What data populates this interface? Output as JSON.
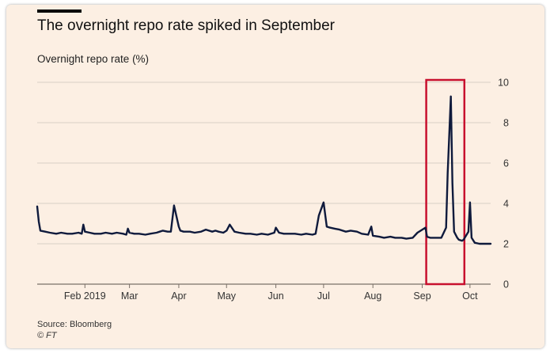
{
  "colors": {
    "background": "#fcefe3",
    "line": "#0f1a3c",
    "grid": "#d9cfc6",
    "highlight": "#c8102e"
  },
  "header": {
    "title": "The overnight repo rate spiked in September",
    "subtitle": "Overnight repo rate (%)"
  },
  "footer": {
    "source": "Source: Bloomberg",
    "copyright": "© FT"
  },
  "chart_data": {
    "type": "line",
    "title": "The overnight repo rate spiked in September",
    "ylabel": "Overnight repo rate (%)",
    "xlabel": "",
    "ylim": [
      0,
      10
    ],
    "yticks": [
      0,
      2,
      4,
      6,
      8,
      10
    ],
    "y_axis_side": "right",
    "grid": true,
    "xlim": [
      "2019-01-02",
      "2019-10-14"
    ],
    "xticks": [
      {
        "date": "2019-02-01",
        "label": "Feb 2019"
      },
      {
        "date": "2019-03-01",
        "label": "Mar"
      },
      {
        "date": "2019-04-01",
        "label": "Apr"
      },
      {
        "date": "2019-05-01",
        "label": "May"
      },
      {
        "date": "2019-06-01",
        "label": "Jun"
      },
      {
        "date": "2019-07-01",
        "label": "Jul"
      },
      {
        "date": "2019-08-01",
        "label": "Aug"
      },
      {
        "date": "2019-09-01",
        "label": "Sep"
      },
      {
        "date": "2019-10-01",
        "label": "Oct"
      }
    ],
    "highlight_range": [
      "2019-09-06",
      "2019-09-25"
    ],
    "series": [
      {
        "values": [
          [
            "2019-01-02",
            3.85
          ],
          [
            "2019-01-03",
            3.1
          ],
          [
            "2019-01-04",
            2.65
          ],
          [
            "2019-01-07",
            2.6
          ],
          [
            "2019-01-10",
            2.55
          ],
          [
            "2019-01-14",
            2.5
          ],
          [
            "2019-01-17",
            2.55
          ],
          [
            "2019-01-21",
            2.5
          ],
          [
            "2019-01-24",
            2.5
          ],
          [
            "2019-01-28",
            2.55
          ],
          [
            "2019-01-30",
            2.5
          ],
          [
            "2019-01-31",
            2.95
          ],
          [
            "2019-02-01",
            2.6
          ],
          [
            "2019-02-04",
            2.55
          ],
          [
            "2019-02-07",
            2.5
          ],
          [
            "2019-02-11",
            2.5
          ],
          [
            "2019-02-14",
            2.55
          ],
          [
            "2019-02-18",
            2.5
          ],
          [
            "2019-02-21",
            2.55
          ],
          [
            "2019-02-25",
            2.5
          ],
          [
            "2019-02-27",
            2.45
          ],
          [
            "2019-02-28",
            2.75
          ],
          [
            "2019-03-01",
            2.55
          ],
          [
            "2019-03-04",
            2.5
          ],
          [
            "2019-03-07",
            2.5
          ],
          [
            "2019-03-11",
            2.45
          ],
          [
            "2019-03-14",
            2.5
          ],
          [
            "2019-03-18",
            2.55
          ],
          [
            "2019-03-20",
            2.6
          ],
          [
            "2019-03-22",
            2.65
          ],
          [
            "2019-03-25",
            2.6
          ],
          [
            "2019-03-27",
            2.6
          ],
          [
            "2019-03-29",
            3.9
          ],
          [
            "2019-04-01",
            2.85
          ],
          [
            "2019-04-02",
            2.65
          ],
          [
            "2019-04-04",
            2.6
          ],
          [
            "2019-04-08",
            2.6
          ],
          [
            "2019-04-11",
            2.55
          ],
          [
            "2019-04-15",
            2.6
          ],
          [
            "2019-04-18",
            2.7
          ],
          [
            "2019-04-22",
            2.6
          ],
          [
            "2019-04-24",
            2.65
          ],
          [
            "2019-04-26",
            2.6
          ],
          [
            "2019-04-29",
            2.55
          ],
          [
            "2019-05-01",
            2.65
          ],
          [
            "2019-05-03",
            2.95
          ],
          [
            "2019-05-06",
            2.6
          ],
          [
            "2019-05-09",
            2.55
          ],
          [
            "2019-05-13",
            2.5
          ],
          [
            "2019-05-16",
            2.5
          ],
          [
            "2019-05-20",
            2.45
          ],
          [
            "2019-05-23",
            2.5
          ],
          [
            "2019-05-27",
            2.45
          ],
          [
            "2019-05-31",
            2.55
          ],
          [
            "2019-06-01",
            2.8
          ],
          [
            "2019-06-03",
            2.55
          ],
          [
            "2019-06-06",
            2.5
          ],
          [
            "2019-06-10",
            2.5
          ],
          [
            "2019-06-13",
            2.5
          ],
          [
            "2019-06-17",
            2.45
          ],
          [
            "2019-06-20",
            2.5
          ],
          [
            "2019-06-24",
            2.45
          ],
          [
            "2019-06-26",
            2.5
          ],
          [
            "2019-06-28",
            3.4
          ],
          [
            "2019-07-01",
            4.05
          ],
          [
            "2019-07-03",
            2.85
          ],
          [
            "2019-07-05",
            2.8
          ],
          [
            "2019-07-08",
            2.75
          ],
          [
            "2019-07-11",
            2.7
          ],
          [
            "2019-07-15",
            2.6
          ],
          [
            "2019-07-18",
            2.65
          ],
          [
            "2019-07-22",
            2.6
          ],
          [
            "2019-07-25",
            2.5
          ],
          [
            "2019-07-29",
            2.45
          ],
          [
            "2019-07-31",
            2.85
          ],
          [
            "2019-08-01",
            2.4
          ],
          [
            "2019-08-05",
            2.35
          ],
          [
            "2019-08-08",
            2.3
          ],
          [
            "2019-08-12",
            2.35
          ],
          [
            "2019-08-15",
            2.3
          ],
          [
            "2019-08-19",
            2.3
          ],
          [
            "2019-08-22",
            2.25
          ],
          [
            "2019-08-26",
            2.3
          ],
          [
            "2019-08-29",
            2.55
          ],
          [
            "2019-09-03",
            2.8
          ],
          [
            "2019-09-04",
            2.35
          ],
          [
            "2019-09-06",
            2.3
          ],
          [
            "2019-09-09",
            2.3
          ],
          [
            "2019-09-12",
            2.3
          ],
          [
            "2019-09-13",
            2.3
          ],
          [
            "2019-09-16",
            2.8
          ],
          [
            "2019-09-17",
            5.5
          ],
          [
            "2019-09-19",
            9.3
          ],
          [
            "2019-09-20",
            5.0
          ],
          [
            "2019-09-21",
            2.6
          ],
          [
            "2019-09-23",
            2.3
          ],
          [
            "2019-09-24",
            2.2
          ],
          [
            "2019-09-26",
            2.15
          ],
          [
            "2019-09-27",
            2.2
          ],
          [
            "2019-09-30",
            2.6
          ],
          [
            "2019-10-01",
            4.05
          ],
          [
            "2019-10-02",
            2.3
          ],
          [
            "2019-10-04",
            2.05
          ],
          [
            "2019-10-07",
            2.0
          ],
          [
            "2019-10-10",
            2.0
          ],
          [
            "2019-10-14",
            2.0
          ]
        ]
      }
    ]
  }
}
